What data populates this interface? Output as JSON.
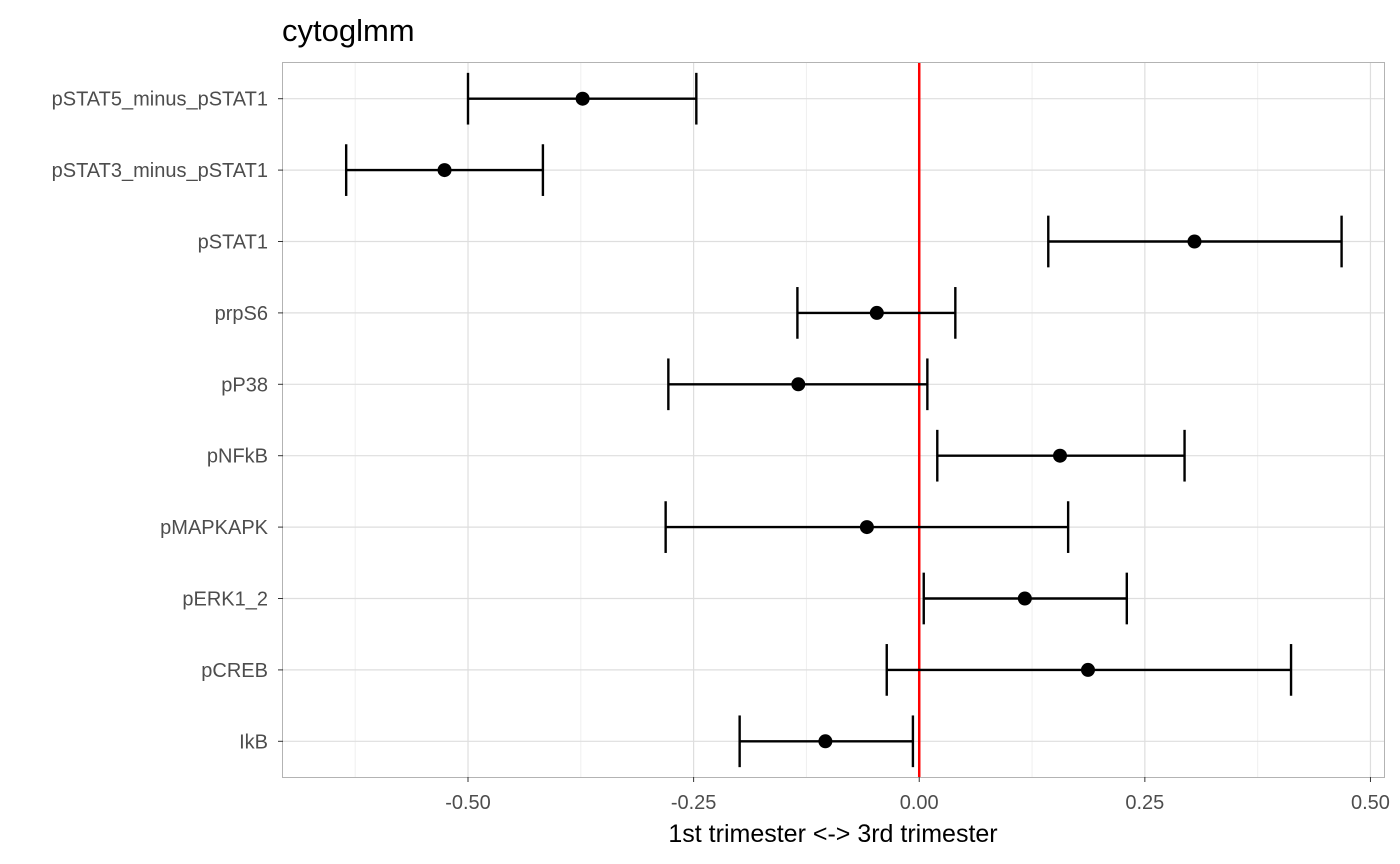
{
  "chart_data": {
    "type": "forest",
    "title": "cytoglmm",
    "subtitle": "",
    "xlabel": "1st trimester <-> 3rd trimester",
    "ylabel": "",
    "xlim": [
      -0.705,
      0.515
    ],
    "x_ticks": [
      -0.5,
      -0.25,
      0.0,
      0.25,
      0.5
    ],
    "x_tick_labels": [
      "-0.50",
      "-0.25",
      "0.00",
      "0.25",
      "0.50"
    ],
    "grid": true,
    "reference_line": {
      "x": 0,
      "color": "#ff0000"
    },
    "categories": [
      "pSTAT5_minus_pSTAT1",
      "pSTAT3_minus_pSTAT1",
      "pSTAT1",
      "prpS6",
      "pP38",
      "pNFkB",
      "pMAPKAPK",
      "pERK1_2",
      "pCREB",
      "IkB"
    ],
    "estimates": [
      -0.373,
      -0.526,
      0.305,
      -0.047,
      -0.134,
      0.156,
      -0.058,
      0.117,
      0.187,
      -0.104
    ],
    "lower": [
      -0.5,
      -0.635,
      0.143,
      -0.135,
      -0.278,
      0.02,
      -0.281,
      0.005,
      -0.036,
      -0.199
    ],
    "upper": [
      -0.247,
      -0.417,
      0.468,
      0.04,
      0.009,
      0.294,
      0.165,
      0.23,
      0.412,
      -0.007
    ],
    "colors": {
      "marker": "#000000",
      "errorbar": "#000000",
      "reference": "#ff0000",
      "grid_major": "#dedede",
      "grid_minor": "#efefef",
      "border": "#b3b3b3"
    }
  }
}
